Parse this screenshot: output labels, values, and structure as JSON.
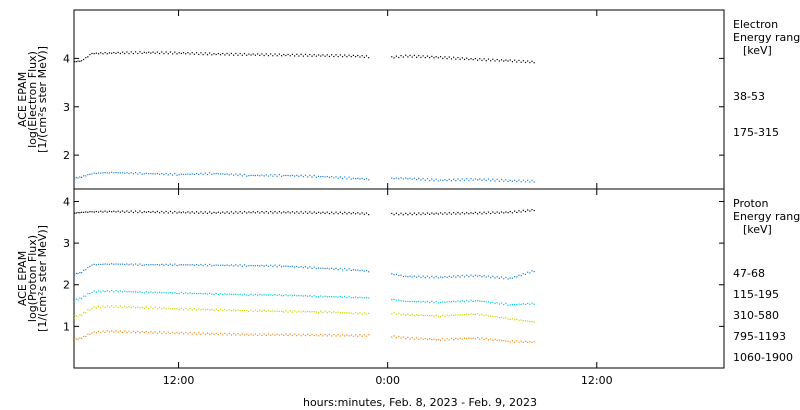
{
  "chart_data": [
    {
      "type": "scatter",
      "panel": "electron",
      "ylabel_lines": [
        "ACE EPAM",
        "log(Electron Flux)",
        "[1/(cm²s ster MeV)]"
      ],
      "ylim": [
        1.3,
        5.0
      ],
      "yticks": [
        2,
        3,
        4
      ],
      "legend_title": [
        "Electron",
        "Energy range"
      ],
      "legend_unit": "[keV]",
      "series": [
        {
          "name": "38-53",
          "color": "#000000",
          "x": [
            6.0,
            6.4,
            7.0,
            8.0,
            10.0,
            12.0,
            14.0,
            16.0,
            18.0,
            20.0,
            22.0,
            23.0,
            23.8,
            24.2,
            25.0,
            27.0,
            29.0,
            31.0,
            32.5
          ],
          "y": [
            3.93,
            3.95,
            4.1,
            4.11,
            4.12,
            4.11,
            4.09,
            4.08,
            4.07,
            4.06,
            4.05,
            4.03,
            null,
            4.02,
            4.05,
            4.02,
            3.98,
            3.95,
            3.92
          ]
        },
        {
          "name": "175-315",
          "color": "#1f7fcf",
          "x": [
            6.0,
            6.4,
            7.0,
            8.0,
            10.0,
            12.0,
            14.0,
            16.0,
            18.0,
            20.0,
            22.0,
            23.0,
            23.8,
            24.2,
            25.0,
            27.0,
            29.0,
            31.0,
            32.5
          ],
          "y": [
            1.52,
            1.55,
            1.62,
            1.64,
            1.62,
            1.6,
            1.62,
            1.58,
            1.58,
            1.56,
            1.52,
            1.5,
            null,
            1.52,
            1.52,
            1.48,
            1.5,
            1.47,
            1.46
          ]
        }
      ]
    },
    {
      "type": "scatter",
      "panel": "proton",
      "ylabel_lines": [
        "ACE EPAM",
        "log(Proton Flux)",
        "[1/(cm²s ster MeV)]"
      ],
      "ylim": [
        0.0,
        4.3
      ],
      "yticks": [
        1,
        2,
        3,
        4
      ],
      "legend_title": [
        "Proton",
        "Energy range"
      ],
      "legend_unit": "[keV]",
      "series": [
        {
          "name": "47-68",
          "color": "#000000",
          "x": [
            6.0,
            6.4,
            7.0,
            8.0,
            10.0,
            12.0,
            14.0,
            16.0,
            18.0,
            20.0,
            22.0,
            23.0,
            23.8,
            24.2,
            25.0,
            27.0,
            29.0,
            31.0,
            32.5
          ],
          "y": [
            3.72,
            3.74,
            3.75,
            3.76,
            3.75,
            3.74,
            3.73,
            3.74,
            3.74,
            3.73,
            3.72,
            3.7,
            null,
            3.7,
            3.7,
            3.71,
            3.72,
            3.74,
            3.8
          ]
        },
        {
          "name": "115-195",
          "color": "#1f7fcf",
          "x": [
            6.0,
            6.4,
            7.0,
            8.0,
            10.0,
            12.0,
            14.0,
            16.0,
            18.0,
            20.0,
            22.0,
            23.0,
            23.8,
            24.2,
            25.0,
            27.0,
            29.0,
            31.0,
            32.5
          ],
          "y": [
            2.25,
            2.3,
            2.48,
            2.5,
            2.48,
            2.48,
            2.47,
            2.46,
            2.45,
            2.4,
            2.36,
            2.32,
            null,
            2.26,
            2.2,
            2.18,
            2.22,
            2.15,
            2.35
          ]
        },
        {
          "name": "310-580",
          "color": "#00c8d2",
          "x": [
            6.0,
            6.4,
            7.0,
            8.0,
            10.0,
            12.0,
            14.0,
            16.0,
            18.0,
            20.0,
            22.0,
            23.0,
            23.8,
            24.2,
            25.0,
            27.0,
            29.0,
            31.0,
            32.5
          ],
          "y": [
            1.62,
            1.68,
            1.83,
            1.85,
            1.82,
            1.8,
            1.78,
            1.76,
            1.75,
            1.72,
            1.7,
            1.68,
            null,
            1.65,
            1.6,
            1.58,
            1.62,
            1.52,
            1.55
          ]
        },
        {
          "name": "795-1193",
          "color": "#c8d200",
          "x": [
            6.0,
            6.4,
            7.0,
            8.0,
            10.0,
            12.0,
            14.0,
            16.0,
            18.0,
            20.0,
            22.0,
            23.0,
            23.8,
            24.2,
            25.0,
            27.0,
            29.0,
            31.0,
            32.5
          ],
          "y": [
            1.22,
            1.28,
            1.45,
            1.48,
            1.45,
            1.42,
            1.4,
            1.38,
            1.36,
            1.35,
            1.32,
            1.3,
            null,
            1.32,
            1.28,
            1.25,
            1.3,
            1.18,
            1.1
          ]
        },
        {
          "name": "1060-1900",
          "color": "#ee8a18",
          "x": [
            6.0,
            6.4,
            7.0,
            8.0,
            10.0,
            12.0,
            14.0,
            16.0,
            18.0,
            20.0,
            22.0,
            23.0,
            23.8,
            24.2,
            25.0,
            27.0,
            29.0,
            31.0,
            32.5
          ],
          "y": [
            0.68,
            0.72,
            0.85,
            0.88,
            0.86,
            0.84,
            0.82,
            0.8,
            0.8,
            0.79,
            0.78,
            0.78,
            null,
            0.76,
            0.72,
            0.68,
            0.72,
            0.64,
            0.62
          ]
        }
      ]
    }
  ],
  "xaxis": {
    "xlim": [
      6.0,
      43.3
    ],
    "ticks": [
      {
        "x": 12,
        "label": "12:00"
      },
      {
        "x": 24,
        "label": "0:00"
      },
      {
        "x": 36,
        "label": "12:00"
      }
    ],
    "label": "hours:minutes, Feb.  8, 2023 - Feb.  9, 2023"
  }
}
